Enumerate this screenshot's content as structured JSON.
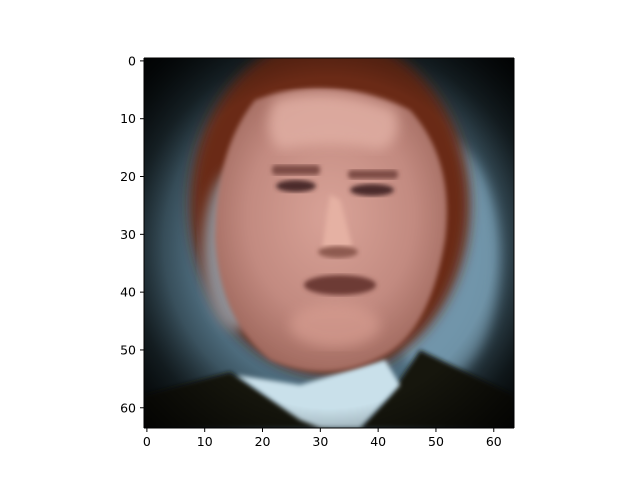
{
  "image": {
    "description_icon": "pixelated-face-portrait-icon",
    "x_range": [
      -0.5,
      63.5
    ],
    "y_range": [
      -0.5,
      63.5
    ],
    "y_inverted": true
  },
  "axes": {
    "x_ticks": [
      0,
      10,
      20,
      30,
      40,
      50,
      60
    ],
    "y_ticks": [
      0,
      10,
      20,
      30,
      40,
      50,
      60
    ],
    "x_tick_labels": [
      "0",
      "10",
      "20",
      "30",
      "40",
      "50",
      "60"
    ],
    "y_tick_labels": [
      "0",
      "10",
      "20",
      "30",
      "40",
      "50",
      "60"
    ]
  },
  "colors": {
    "background_dark": "#101c21",
    "background_blue": "#6a8ea4",
    "hair": "#6b2a12",
    "skin": "#c58f86",
    "skin_light": "#e0aea3",
    "shirt": "#c9e0ea",
    "suit": "#15140f"
  }
}
